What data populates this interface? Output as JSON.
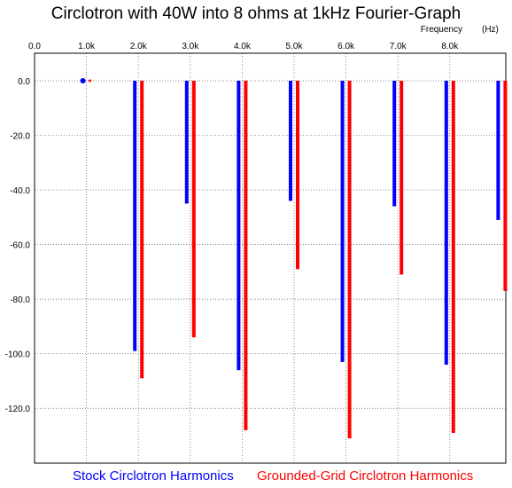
{
  "chart_data": {
    "type": "bar",
    "title": "Circlotron with 40W into 8 ohms at 1kHz Fourier-Graph",
    "xlabel": "Frequency",
    "xunit": "(Hz)",
    "xlim": [
      0,
      9000
    ],
    "ylim": [
      -135,
      10
    ],
    "x_ticks": [
      0,
      1000,
      2000,
      3000,
      4000,
      5000,
      6000,
      7000,
      8000
    ],
    "x_tick_labels": [
      "0.0",
      "1.0k",
      "2.0k",
      "3.0k",
      "4.0k",
      "5.0k",
      "6.0k",
      "7.0k",
      "8.0k"
    ],
    "y_ticks": [
      0,
      -20,
      -40,
      -60,
      -80,
      -100,
      -120
    ],
    "y_tick_labels": [
      "0.0",
      "-20.0",
      "-40.0",
      "-60.0",
      "-80.0",
      "-100.0",
      "-120.0"
    ],
    "grid": true,
    "legend_position": "bottom",
    "series": [
      {
        "name": "Stock Circlotron Harmonics",
        "color": "#0000ff",
        "x": [
          1000,
          2000,
          3000,
          4000,
          5000,
          6000,
          7000,
          8000,
          9000
        ],
        "values": [
          0,
          -99,
          -45,
          -106,
          -44,
          -103,
          -46,
          -104,
          -51
        ]
      },
      {
        "name": "Grounded-Grid Circlotron Harmonics",
        "color": "#ff0000",
        "x": [
          1000,
          2000,
          3000,
          4000,
          5000,
          6000,
          7000,
          8000,
          9000
        ],
        "values": [
          0,
          -109,
          -94,
          -128,
          -69,
          -131,
          -71,
          -129,
          -77
        ]
      }
    ]
  }
}
